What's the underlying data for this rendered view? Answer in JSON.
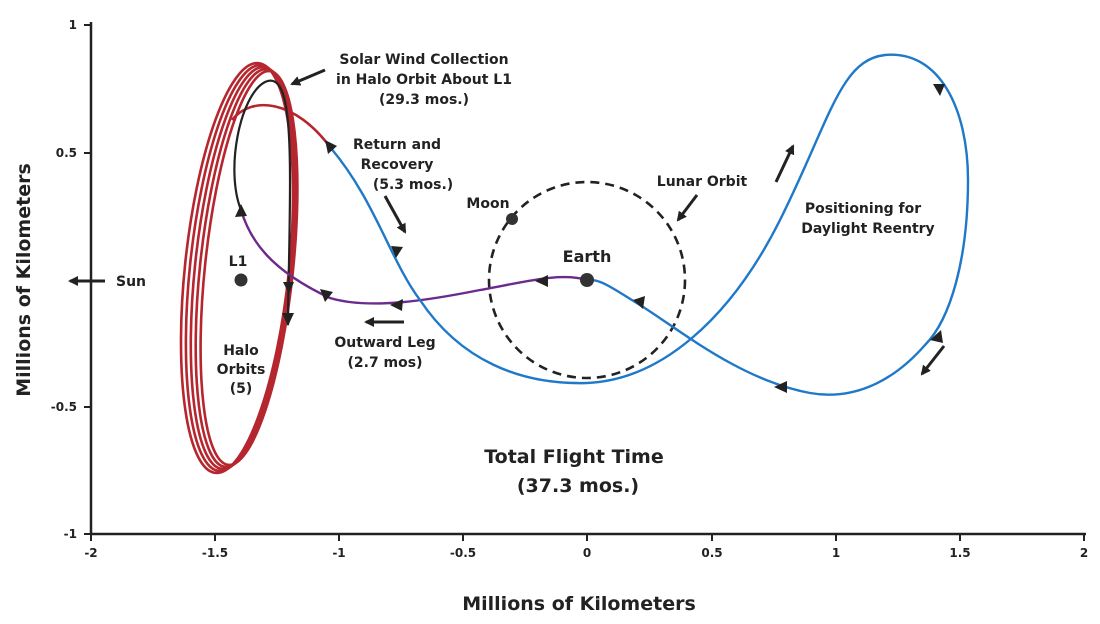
{
  "title": "Total Flight Time",
  "title_sub": "(37.3 mos.)",
  "x_axis": {
    "label": "Millions of Kilometers",
    "range": [
      -2,
      2
    ],
    "ticks": [
      "-2",
      "-1.5",
      "-1",
      "-0.5",
      "0",
      "0.5",
      "1",
      "1.5",
      "2"
    ]
  },
  "y_axis": {
    "label": "Millions of Kilometers",
    "range": [
      -1,
      1
    ],
    "ticks": [
      "1",
      "0.5",
      "-0.5",
      "-1"
    ]
  },
  "annotations": {
    "sun": "Sun",
    "l1": "L1",
    "earth": "Earth",
    "moon": "Moon",
    "lunar_orbit": "Lunar Orbit",
    "halo_line1": "Halo",
    "halo_line2": "Orbits",
    "halo_line3": "(5)",
    "collection_line1": "Solar Wind Collection",
    "collection_line2": "in Halo Orbit About L1",
    "collection_line3": "(29.3 mos.)",
    "return_line1": "Return and",
    "return_line2": "Recovery",
    "return_line3": "(5.3 mos.)",
    "outward_line1": "Outward Leg",
    "outward_line2": "(2.7 mos)",
    "positioning_line1": "Positioning for",
    "positioning_line2": "Daylight Reentry"
  },
  "legend_colors": {
    "halo": "#b5262e",
    "return": "#1f78c8",
    "outward": "#6c2a8c",
    "insertion": "#222222"
  },
  "chart_data": {
    "type": "diagram",
    "points": [
      {
        "name": "L1",
        "x": -1.4,
        "y": 0.0
      },
      {
        "name": "Earth",
        "x": 0.0,
        "y": 0.0
      },
      {
        "name": "Moon",
        "x": -0.3,
        "y": 0.24
      }
    ],
    "lunar_orbit_radius": 0.4,
    "halo_orbit_count": 5,
    "phases": [
      {
        "name": "Outward Leg",
        "duration": "2.7 mos"
      },
      {
        "name": "Solar Wind Collection in Halo Orbit About L1",
        "duration": "29.3 mos."
      },
      {
        "name": "Return and Recovery",
        "duration": "5.3 mos."
      }
    ],
    "total_flight_time": "37.3 mos."
  }
}
